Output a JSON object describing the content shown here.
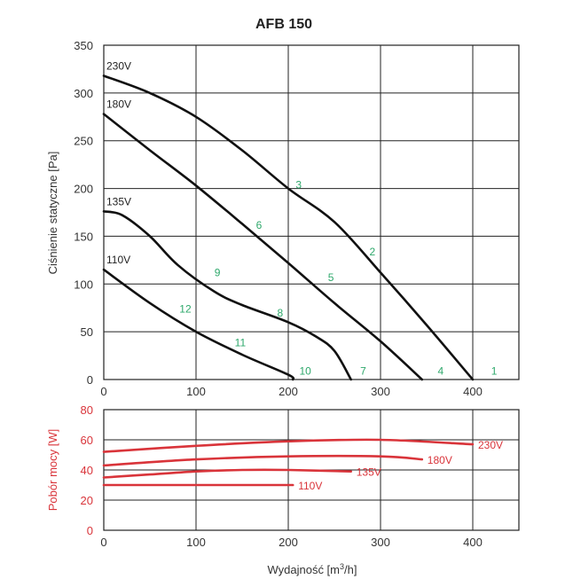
{
  "chart_data": [
    {
      "type": "line",
      "title": "AFB 150",
      "xlabel": "",
      "ylabel": "Ciśnienie statyczne [Pa]",
      "xlim": [
        0,
        450
      ],
      "ylim": [
        0,
        350
      ],
      "xticks": [
        0,
        100,
        200,
        300,
        400
      ],
      "yticks": [
        0,
        50,
        100,
        150,
        200,
        250,
        300,
        350
      ],
      "grid": true,
      "series": [
        {
          "name": "230V",
          "x": [
            0,
            50,
            100,
            150,
            200,
            250,
            300,
            350,
            400
          ],
          "y": [
            318,
            300,
            275,
            240,
            200,
            165,
            112,
            57,
            0
          ]
        },
        {
          "name": "180V",
          "x": [
            0,
            50,
            100,
            150,
            200,
            250,
            300,
            345
          ],
          "y": [
            278,
            240,
            203,
            163,
            122,
            80,
            40,
            0
          ]
        },
        {
          "name": "135V",
          "x": [
            0,
            20,
            50,
            80,
            120,
            150,
            200,
            230,
            250,
            268
          ],
          "y": [
            176,
            172,
            150,
            120,
            92,
            78,
            60,
            45,
            30,
            0
          ]
        },
        {
          "name": "110V",
          "x": [
            0,
            50,
            100,
            150,
            200,
            205
          ],
          "y": [
            115,
            80,
            50,
            26,
            5,
            0
          ]
        }
      ],
      "point_labels": [
        {
          "label": "1",
          "x": 420,
          "y": 5
        },
        {
          "label": "2",
          "x": 288,
          "y": 130
        },
        {
          "label": "3",
          "x": 208,
          "y": 200
        },
        {
          "label": "4",
          "x": 362,
          "y": 5
        },
        {
          "label": "5",
          "x": 243,
          "y": 103
        },
        {
          "label": "6",
          "x": 165,
          "y": 158
        },
        {
          "label": "7",
          "x": 278,
          "y": 5
        },
        {
          "label": "8",
          "x": 188,
          "y": 66
        },
        {
          "label": "9",
          "x": 120,
          "y": 108
        },
        {
          "label": "10",
          "x": 212,
          "y": 5
        },
        {
          "label": "11",
          "x": 142,
          "y": 35
        },
        {
          "label": "12",
          "x": 82,
          "y": 70
        }
      ]
    },
    {
      "type": "line",
      "title": "",
      "xlabel": "Wydajność [m³/h]",
      "ylabel": "Pobór mocy [W]",
      "xlim": [
        0,
        450
      ],
      "ylim": [
        0,
        80
      ],
      "xticks": [
        0,
        100,
        200,
        300,
        400
      ],
      "yticks": [
        0,
        20,
        40,
        60,
        80
      ],
      "grid": true,
      "series": [
        {
          "name": "230V",
          "x": [
            0,
            100,
            200,
            300,
            400
          ],
          "y": [
            52,
            56,
            59,
            60,
            57
          ]
        },
        {
          "name": "180V",
          "x": [
            0,
            100,
            200,
            300,
            345
          ],
          "y": [
            43,
            47,
            49,
            49,
            47
          ]
        },
        {
          "name": "135V",
          "x": [
            0,
            50,
            100,
            150,
            200,
            268
          ],
          "y": [
            35,
            37,
            39,
            40,
            40,
            39
          ]
        },
        {
          "name": "110V",
          "x": [
            0,
            100,
            205
          ],
          "y": [
            30,
            30,
            30
          ]
        }
      ]
    }
  ],
  "colors": {
    "pressure_curve": "#111111",
    "power_curve": "#d9343a",
    "point_label": "#2ea86b"
  }
}
